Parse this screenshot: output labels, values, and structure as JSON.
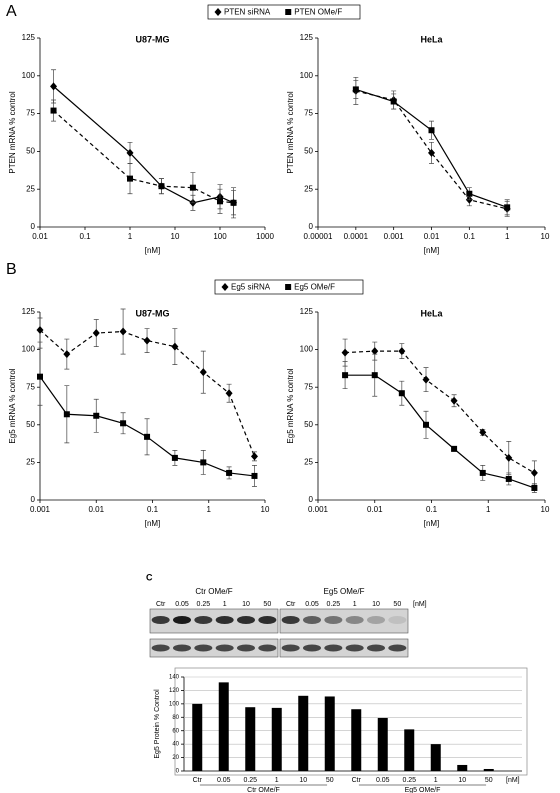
{
  "panel_labels": [
    "A",
    "B",
    "C"
  ],
  "chart_data": [
    {
      "type": "line",
      "title": "U87-MG",
      "x_label": "[nM]",
      "y_label": "PTEN mRNA % control",
      "log_x": true,
      "x": [
        0.02,
        1,
        5,
        25,
        100,
        200
      ],
      "xlim": [
        0.01,
        1000
      ],
      "xticks": [
        0.01,
        0.1,
        1,
        10,
        100,
        1000
      ],
      "ylim": [
        0,
        125
      ],
      "yticks": [
        0,
        25,
        50,
        75,
        100,
        125
      ],
      "series": [
        {
          "name": "PTEN siRNA",
          "marker": "diamond",
          "dashed": false,
          "color": "#000000",
          "values": [
            93,
            49,
            27,
            16,
            20,
            16
          ],
          "errors": [
            11,
            7,
            5,
            5,
            8,
            10
          ]
        },
        {
          "name": "PTEN OMe/F",
          "marker": "square",
          "dashed": true,
          "color": "#000000",
          "values": [
            77,
            32,
            27,
            26,
            17,
            16
          ],
          "errors": [
            7,
            10,
            5,
            10,
            8,
            8
          ]
        }
      ]
    },
    {
      "type": "line",
      "title": "HeLa",
      "x_label": "[nM]",
      "y_label": "PTEN mRNA % control",
      "log_x": true,
      "x": [
        0.0001,
        0.001,
        0.01,
        0.1,
        1
      ],
      "xlim": [
        1e-05,
        10
      ],
      "xticks": [
        1e-05,
        0.0001,
        0.001,
        0.01,
        0.1,
        1,
        10
      ],
      "ylim": [
        0,
        125
      ],
      "yticks": [
        0,
        25,
        50,
        75,
        100,
        125
      ],
      "series": [
        {
          "marker": "diamond",
          "dashed": true,
          "color": "#000000",
          "values": [
            90,
            84,
            49,
            18,
            12
          ],
          "errors": [
            9,
            6,
            7,
            4,
            5
          ]
        },
        {
          "marker": "square",
          "dashed": false,
          "color": "#000000",
          "values": [
            91,
            83,
            64,
            22,
            13
          ],
          "errors": [
            6,
            5,
            6,
            4,
            5
          ]
        }
      ]
    },
    {
      "type": "line",
      "title": "U87-MG",
      "x_label": "[nM]",
      "y_label": "Eg5 mRNA % control",
      "log_x": true,
      "x": [
        0.001,
        0.003,
        0.01,
        0.03,
        0.08,
        0.25,
        0.8,
        2.3,
        6.5
      ],
      "xlim": [
        0.001,
        10
      ],
      "xticks": [
        0.001,
        0.01,
        0.1,
        1,
        10
      ],
      "ylim": [
        0,
        125
      ],
      "yticks": [
        0,
        25,
        50,
        75,
        100,
        125
      ],
      "series": [
        {
          "name": "Eg5 siRNA",
          "marker": "diamond",
          "dashed": true,
          "color": "#000000",
          "values": [
            113,
            97,
            111,
            112,
            106,
            102,
            85,
            71,
            29
          ],
          "errors": [
            8,
            10,
            9,
            15,
            8,
            12,
            14,
            6,
            3
          ]
        },
        {
          "name": "Eg5 OMe/F",
          "marker": "square",
          "dashed": false,
          "color": "#000000",
          "values": [
            82,
            57,
            56,
            51,
            42,
            28,
            25,
            18,
            16
          ],
          "errors": [
            19,
            19,
            11,
            7,
            12,
            5,
            8,
            4,
            7
          ]
        }
      ]
    },
    {
      "type": "line",
      "title": "HeLa",
      "x_label": "[nM]",
      "y_label": "Eg5 mRNA % control",
      "log_x": true,
      "x": [
        0.003,
        0.01,
        0.03,
        0.08,
        0.25,
        0.8,
        2.3,
        6.5
      ],
      "xlim": [
        0.001,
        10
      ],
      "xticks": [
        0.001,
        0.01,
        0.1,
        1,
        10
      ],
      "ylim": [
        0,
        125
      ],
      "yticks": [
        0,
        25,
        50,
        75,
        100,
        125
      ],
      "series": [
        {
          "marker": "diamond",
          "dashed": true,
          "color": "#000000",
          "values": [
            98,
            99,
            99,
            80,
            66,
            45,
            28,
            18
          ],
          "errors": [
            9,
            6,
            5,
            8,
            4,
            2,
            11,
            8
          ]
        },
        {
          "marker": "square",
          "dashed": false,
          "color": "#000000",
          "values": [
            83,
            83,
            71,
            50,
            34,
            18,
            14,
            8
          ],
          "errors": [
            9,
            14,
            8,
            9,
            1,
            5,
            4,
            3
          ]
        }
      ]
    },
    {
      "type": "bar",
      "y_label": "Eg5 Protein % Control",
      "unit_label": "[nM]",
      "color": "#000000",
      "grid": true,
      "groups": [
        "Ctr OMe/F",
        "Eg5 OMe/F"
      ],
      "categories": [
        "Ctr",
        "0.05",
        "0.25",
        "1",
        "10",
        "50",
        "Ctr",
        "0.05",
        "0.25",
        "1",
        "10",
        "50"
      ],
      "values": [
        100,
        132,
        95,
        94,
        112,
        111,
        92,
        79,
        62,
        40,
        9,
        3
      ],
      "ylim": [
        0,
        140
      ],
      "yticks": [
        0,
        20,
        40,
        60,
        80,
        100,
        120,
        140
      ]
    }
  ]
}
